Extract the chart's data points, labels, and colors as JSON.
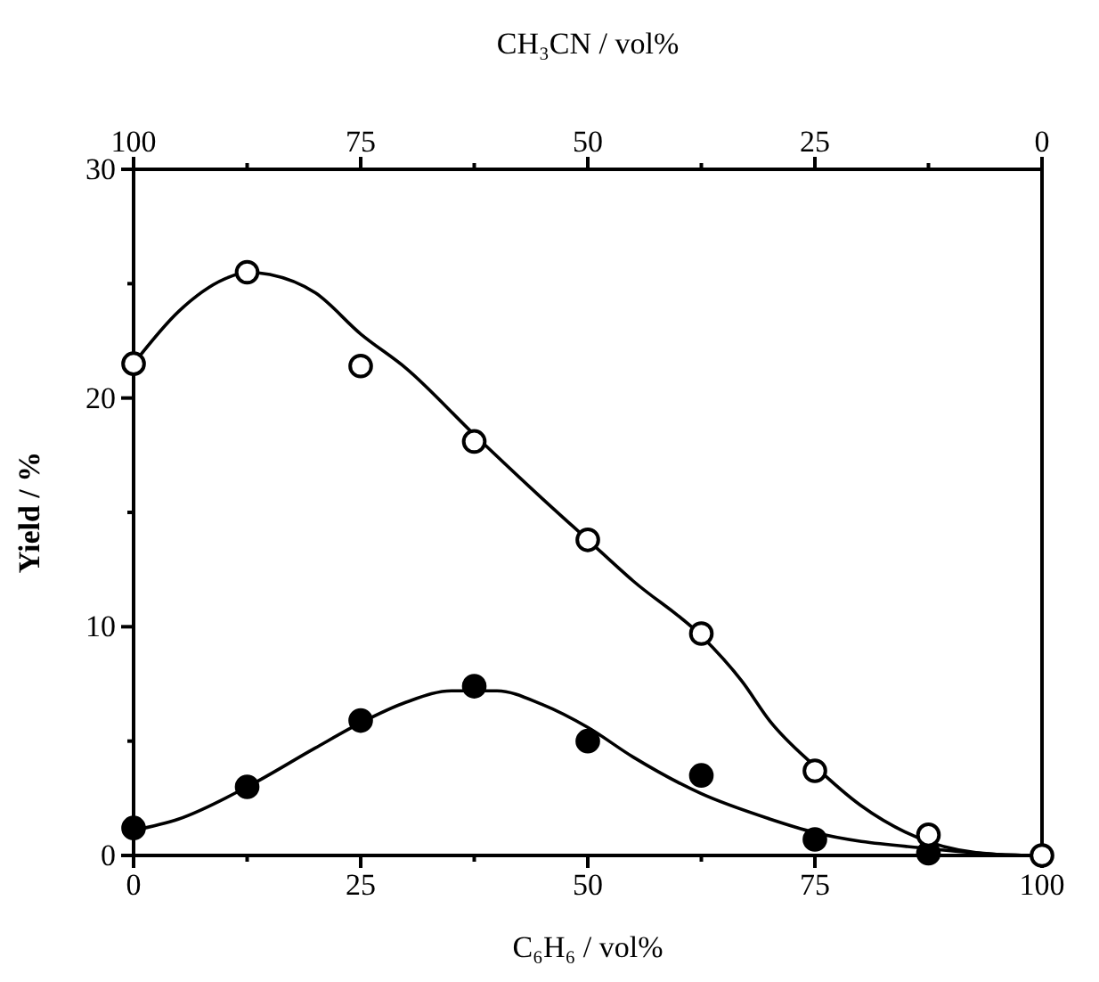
{
  "chart_data": {
    "type": "scatter",
    "xlabel": "C₆H₆ / vol%",
    "x2label": "CH₃CN / vol%",
    "ylabel": "Yield / %",
    "xlim": [
      0,
      100
    ],
    "xticks": [
      0,
      {
        "value": 12.5,
        "label": null
      },
      25,
      {
        "value": 37.5,
        "label": null
      },
      50,
      {
        "value": 62.5,
        "label": null
      },
      75,
      {
        "value": 87.5,
        "label": null
      },
      100
    ],
    "x2lim": [
      100,
      0
    ],
    "x2ticks": [
      100,
      {
        "value": 87.5,
        "label": null
      },
      75,
      {
        "value": 62.5,
        "label": null
      },
      50,
      {
        "value": 37.5,
        "label": null
      },
      25,
      {
        "value": 12.5,
        "label": null
      },
      0
    ],
    "ylim": [
      0,
      30
    ],
    "yticks": [
      0,
      {
        "value": 5,
        "label": null
      },
      10,
      {
        "value": 15,
        "label": null
      },
      20,
      {
        "value": 25,
        "label": null
      },
      30
    ],
    "grid": false,
    "series": [
      {
        "type": "line",
        "color": "#000000",
        "marker": "none",
        "x": [
          0,
          5,
          10,
          12.5,
          15,
          20,
          25,
          30,
          37.5,
          45,
          50,
          55,
          62.5,
          67,
          70,
          75,
          80,
          87.5,
          95,
          100
        ],
        "values": [
          21.5,
          23.8,
          25.2,
          25.5,
          25.4,
          24.6,
          22.8,
          21.3,
          18.4,
          15.6,
          13.8,
          12.0,
          9.6,
          7.6,
          5.9,
          3.9,
          2.2,
          0.6,
          0.05,
          0
        ]
      },
      {
        "type": "line",
        "color": "#000000",
        "marker": "none",
        "x": [
          0,
          5,
          12.5,
          20,
          25,
          30,
          35,
          40,
          45,
          50,
          55,
          62.5,
          70,
          75,
          87.5,
          95,
          100
        ],
        "values": [
          1.1,
          1.6,
          3.0,
          4.7,
          5.8,
          6.7,
          7.2,
          7.2,
          6.6,
          5.6,
          4.3,
          2.7,
          1.6,
          1.0,
          0.3,
          0.05,
          0
        ]
      },
      {
        "color": "#000000",
        "marker": "circle",
        "x": [
          0,
          12.5,
          25,
          37.5,
          50,
          62.5,
          75,
          87.5
        ],
        "values": [
          1.2,
          3.0,
          5.9,
          7.4,
          5.0,
          3.5,
          0.7,
          0.1
        ]
      },
      {
        "color": "#ffffff",
        "marker": "circle",
        "x": [
          0,
          12.5,
          25,
          37.5,
          50,
          62.5,
          75,
          87.5,
          100
        ],
        "values": [
          21.5,
          25.5,
          21.4,
          18.1,
          13.8,
          9.7,
          3.7,
          0.9,
          0
        ]
      }
    ]
  }
}
